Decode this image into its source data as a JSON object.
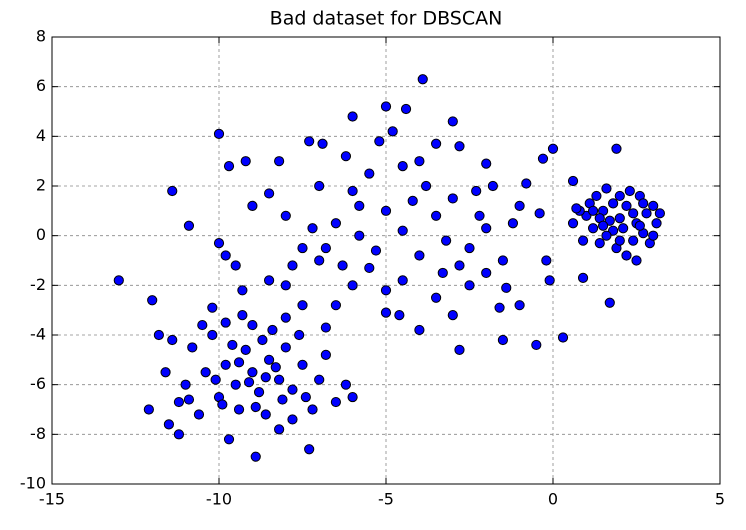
{
  "chart_data": {
    "type": "scatter",
    "title": "Bad dataset for DBSCAN",
    "color": "#0000ff",
    "edgecolor": "#000000",
    "grid": true,
    "xlim": [
      -15,
      5
    ],
    "xticks": [
      -15,
      -10,
      -5,
      0,
      5
    ],
    "ylim": [
      -10,
      8
    ],
    "yticks": [
      -10,
      -8,
      -6,
      -4,
      -2,
      0,
      2,
      4,
      6,
      8
    ],
    "x": [
      -13,
      -12,
      -11.4,
      -10,
      -3.9,
      -4.4,
      -5,
      -6,
      0,
      1.9,
      1.7,
      0.9,
      0.3,
      -0.5,
      -8.9,
      -11.2,
      -7.3,
      -12.1,
      -10.9,
      -9.2,
      -9.7,
      -7.3,
      -6.9,
      -8.2,
      -3.5,
      -2.8,
      -2,
      -0.8,
      -0.3,
      0.6,
      -0.4,
      -0.2,
      -0.1,
      -1.4,
      -1.5,
      -2.8,
      -4,
      -5,
      -6.8,
      -7.5,
      -10,
      -9.8,
      -9.5,
      -9,
      -8.5,
      -8,
      -7.5,
      -7,
      -6.5,
      -6,
      -5.5,
      -5,
      -4.5,
      -4,
      -3.5,
      -3,
      -2.5,
      -2,
      -1.5,
      -1,
      -6,
      -5.5,
      -5,
      -4.5,
      -3.5,
      -3,
      -2.5,
      -2,
      -1,
      -6.5,
      -7,
      -6.2,
      -5.2,
      -4.5,
      -3.8,
      -4.8,
      -3,
      -2.2,
      -1.2,
      -8.5,
      -8,
      -7.8,
      -7.2,
      -6.8,
      -5.8,
      -5.3,
      -4.2,
      -3.2,
      -2.8,
      -1.8,
      -9.3,
      -10.2,
      -9.8,
      -4,
      -5.8,
      -3.3,
      -2.3,
      -1.6,
      -6.3,
      -4.6,
      -9,
      -8.5,
      -9.5,
      -8.8,
      -9.2,
      -8.2,
      -9.8,
      -8,
      -10,
      -9.4,
      -8.6,
      -7.8,
      -7.5,
      -10.4,
      -10.8,
      -11,
      -9,
      -8.4,
      -7.6,
      -10.2,
      -11.4,
      -11.6,
      -11.2,
      -10.6,
      -9.7,
      -8.2,
      -7.2,
      -7,
      -6.8,
      -6.2,
      -8.9,
      -9.6,
      -8.3,
      -9.1,
      -8.7,
      -10.1,
      -9.9,
      -8.1,
      -7.4,
      -11.8,
      -10.5,
      -9.3,
      -8,
      -6.5,
      -7.8,
      -10.9,
      -11.5,
      -6,
      -9.4,
      -8.6,
      2,
      1.5,
      2.5,
      1.8,
      2.2,
      1,
      2.8,
      3,
      1.3,
      2.6,
      1.6,
      2.4,
      1.9,
      2.7,
      1.2,
      0.8,
      0.6,
      0.9,
      1.4,
      2.2,
      2.5,
      3.1,
      3.2,
      2,
      1.6,
      2.3,
      1.1,
      2.9,
      1.7,
      2.1,
      2.4,
      1.4,
      2.7,
      0.7,
      3,
      1.8,
      2.6,
      1.5,
      2,
      1.2
    ],
    "values": [
      -1.8,
      -2.6,
      1.8,
      4.1,
      6.3,
      5.1,
      5.2,
      4.8,
      3.5,
      3.5,
      -2.7,
      -1.7,
      -4.1,
      -4.4,
      -8.9,
      -8,
      -8.6,
      -7,
      0.4,
      3,
      2.8,
      3.8,
      3.7,
      3,
      3.7,
      3.6,
      2.9,
      2.1,
      3.1,
      2.2,
      0.9,
      -1,
      -1.8,
      -2.1,
      -4.2,
      -4.6,
      -3.8,
      -3.1,
      -3.7,
      -2.8,
      -0.3,
      -0.8,
      -1.2,
      1.2,
      1.7,
      0.8,
      -0.5,
      -1,
      0.5,
      1.8,
      2.5,
      1,
      0.2,
      -0.8,
      0.8,
      1.5,
      -0.5,
      0.3,
      -1,
      1.2,
      -2,
      -1.3,
      -2.2,
      -1.8,
      -2.5,
      -3.2,
      -2,
      -1.5,
      -2.8,
      -2.8,
      2,
      3.2,
      3.8,
      2.8,
      2,
      4.2,
      4.6,
      0.8,
      0.5,
      -1.8,
      -2,
      -1.2,
      0.3,
      -0.5,
      0,
      -0.6,
      1.4,
      -0.2,
      -1.2,
      2,
      -2.2,
      -2.9,
      -3.5,
      3,
      1.2,
      -1.5,
      1.8,
      -2.9,
      -1.2,
      -3.2,
      -5.5,
      -5,
      -6,
      -6.3,
      -4.6,
      -5.8,
      -5.2,
      -4.5,
      -6.5,
      -7,
      -7.2,
      -6.2,
      -5.2,
      -5.5,
      -4.5,
      -6,
      -3.6,
      -3.8,
      -4,
      -4,
      -4.2,
      -5.5,
      -6.7,
      -7.2,
      -8.2,
      -7.8,
      -7,
      -5.8,
      -4.8,
      -6,
      -6.9,
      -4.4,
      -5.3,
      -5.9,
      -4.2,
      -5.8,
      -6.8,
      -6.6,
      -6.5,
      -4,
      -3.6,
      -3.2,
      -3.3,
      -6.7,
      -7.4,
      -6.6,
      -7.6,
      -6.5,
      -5.1,
      -5.7,
      0.7,
      1,
      0.5,
      0.2,
      1.2,
      0.8,
      0.9,
      1.2,
      1.6,
      1.6,
      0,
      -0.2,
      -0.5,
      0.1,
      0.3,
      1,
      0.5,
      -0.2,
      -0.3,
      -0.8,
      -1,
      0.5,
      0.9,
      1.6,
      1.9,
      1.8,
      1.3,
      -0.3,
      0.6,
      0.3,
      0.9,
      0.7,
      1.3,
      1.1,
      0,
      1.3,
      0.4,
      0.4,
      -0.2,
      1
    ]
  }
}
